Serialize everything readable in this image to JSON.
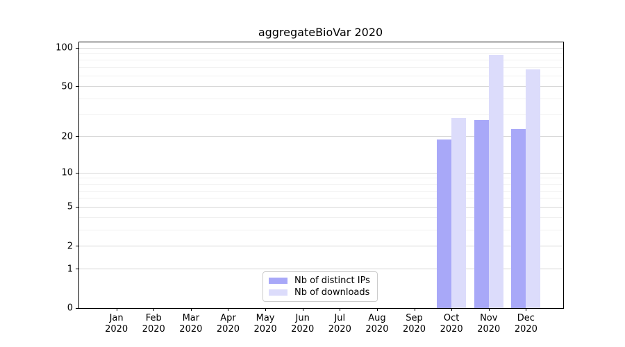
{
  "chart_data": {
    "type": "bar",
    "title": "aggregateBioVar 2020",
    "categories": [
      "Jan",
      "Feb",
      "Mar",
      "Apr",
      "May",
      "Jun",
      "Jul",
      "Aug",
      "Sep",
      "Oct",
      "Nov",
      "Dec"
    ],
    "year_label": "2020",
    "series": [
      {
        "name": "Nb of distinct IPs",
        "color": "#a8a8f8",
        "values": [
          0,
          0,
          0,
          0,
          0,
          0,
          0,
          0,
          0,
          19,
          27,
          23
        ]
      },
      {
        "name": "Nb of downloads",
        "color": "#dcdcfb",
        "values": [
          0,
          0,
          0,
          0,
          0,
          0,
          0,
          0,
          0,
          28,
          88,
          68
        ]
      }
    ],
    "yscale": "log1p",
    "ylim": [
      0,
      100
    ],
    "yticks": [
      0,
      1,
      2,
      5,
      10,
      20,
      50,
      100
    ],
    "minor_gridlines": [
      3,
      4,
      6,
      7,
      8,
      9,
      30,
      40,
      60,
      70,
      80,
      90
    ],
    "grid": true,
    "legend_position": "lower center"
  }
}
